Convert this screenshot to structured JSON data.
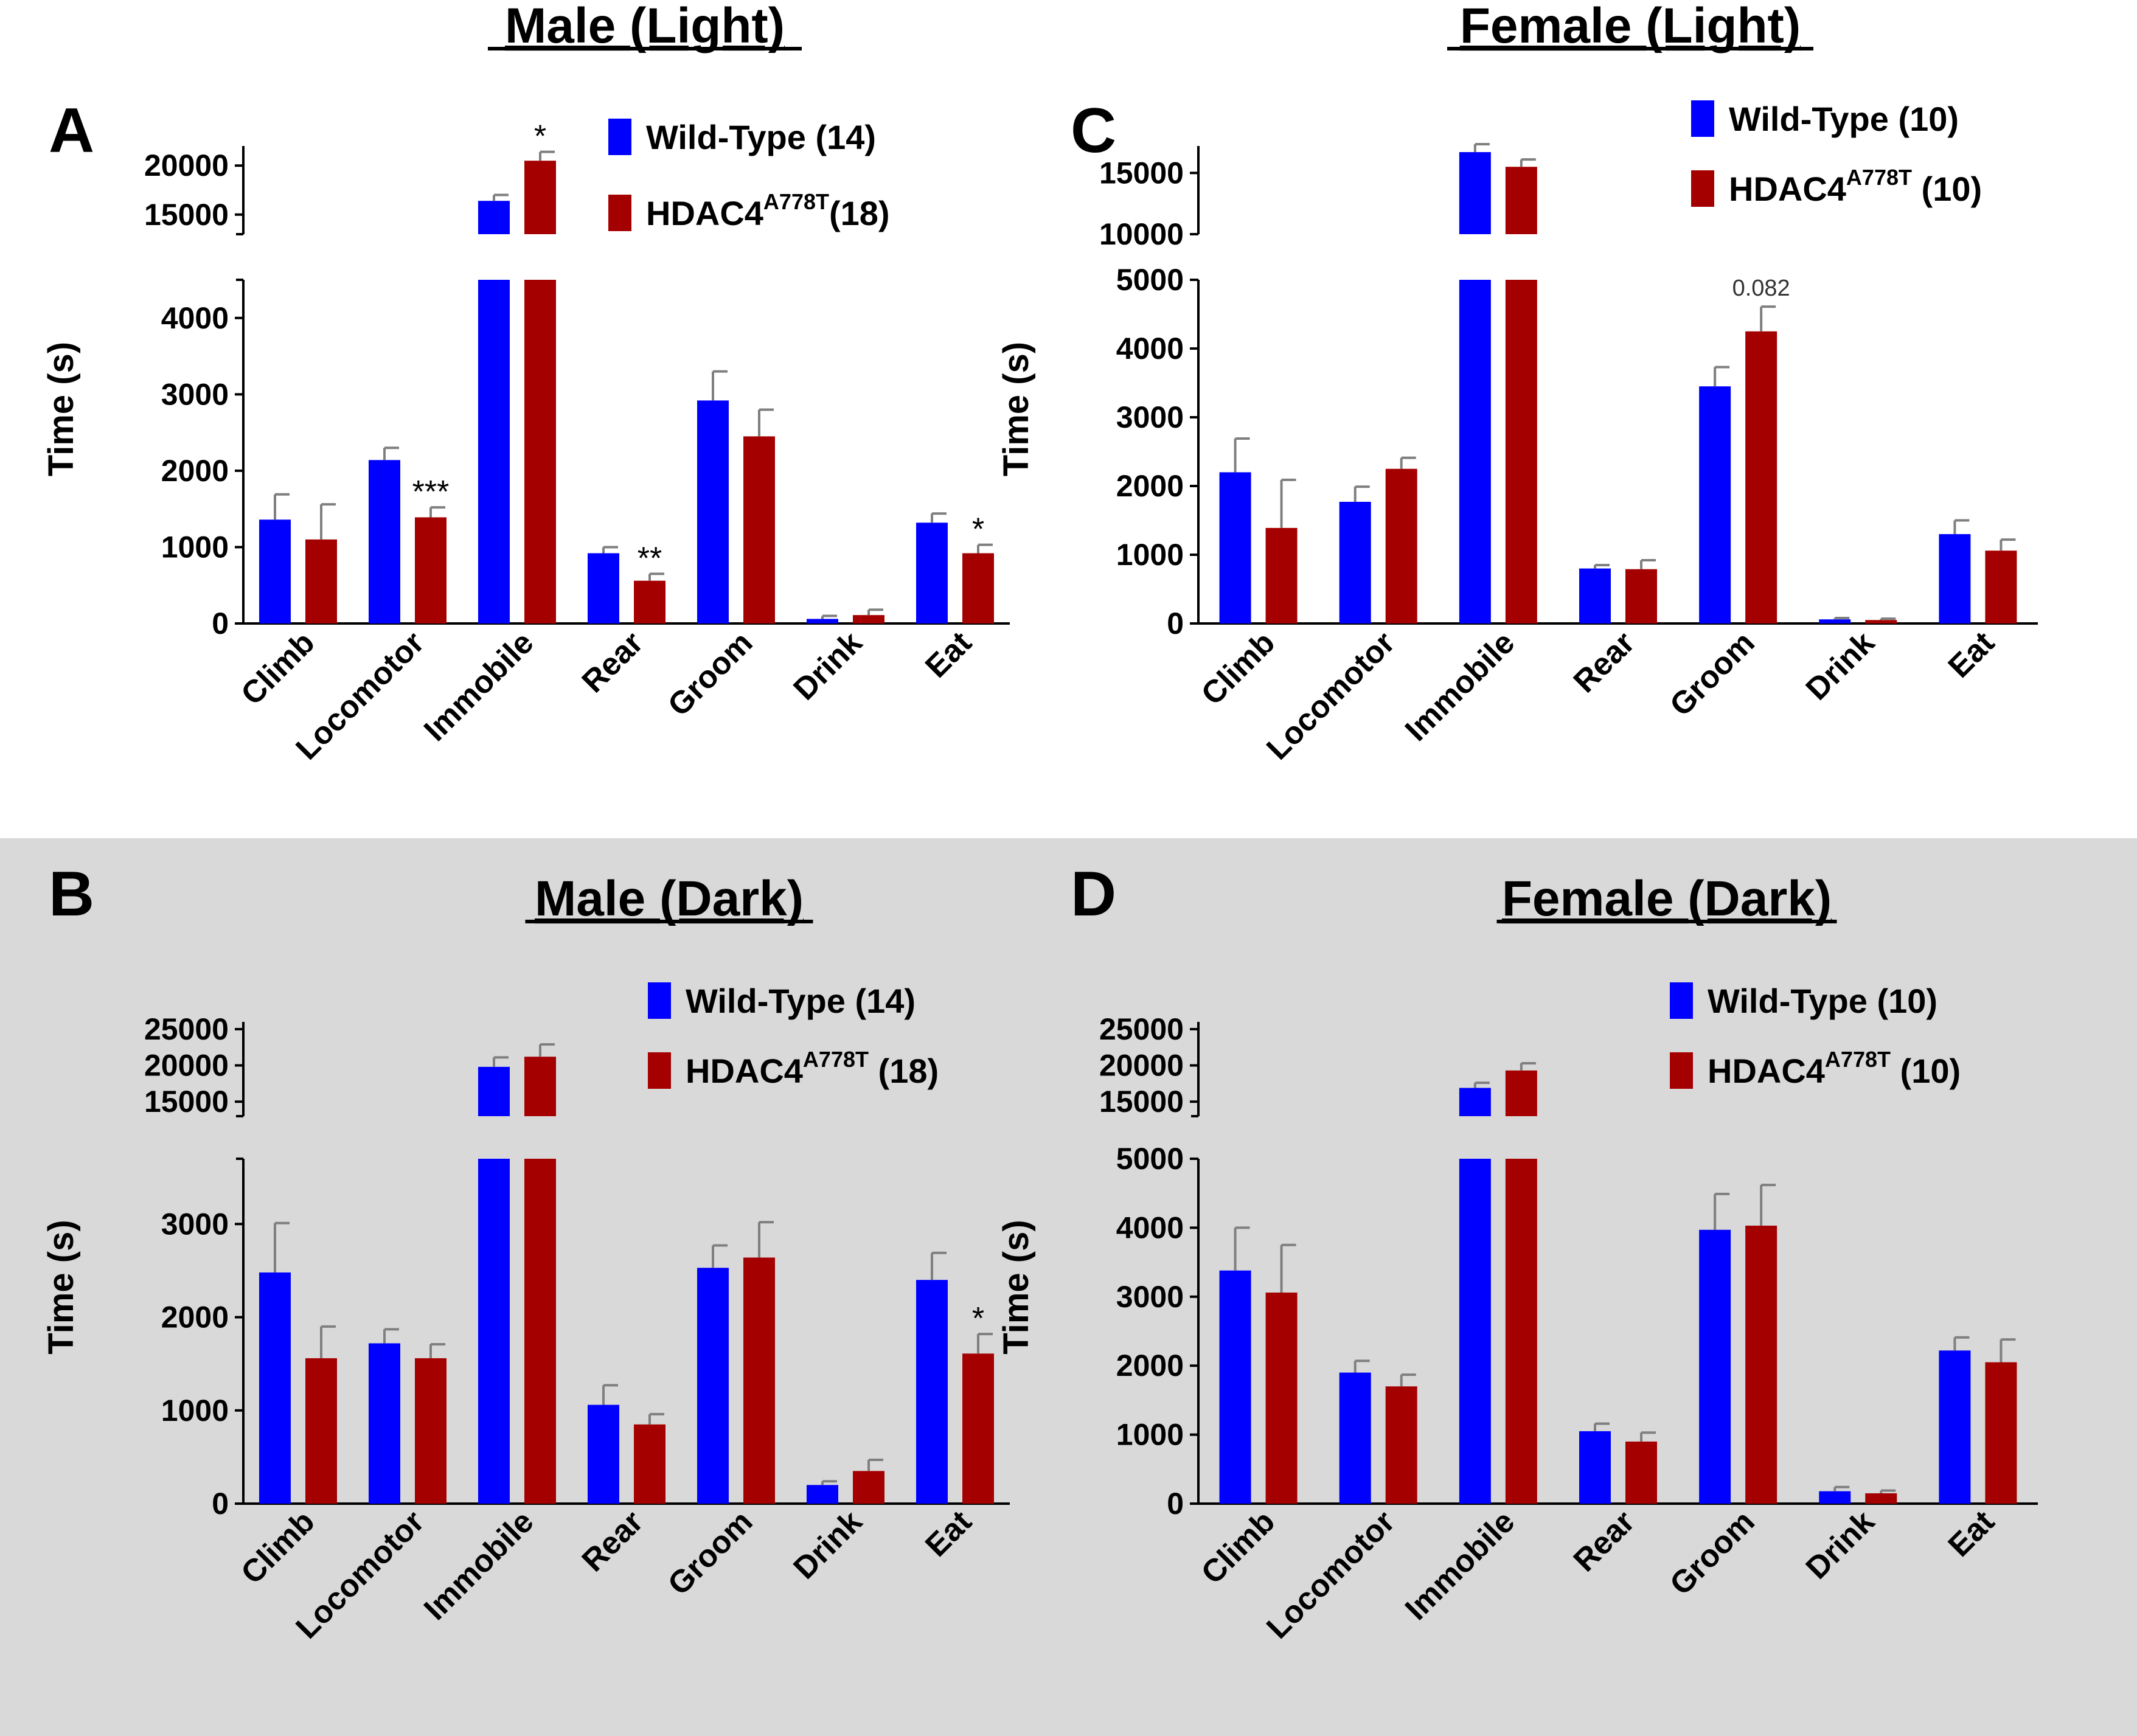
{
  "colors": {
    "wild_type": "#0000ff",
    "hdac4": "#a50000",
    "error_bar": "#7f7f7f",
    "dark_panel_bg": "#d9d9d9"
  },
  "chart_data": [
    {
      "id": "A",
      "type": "bar",
      "panel_letter": "A",
      "title": "Male (Light)",
      "ylabel": "Time (s)",
      "categories": [
        "Climb",
        "Locomotor",
        "Immobile",
        "Rear",
        "Groom",
        "Drink",
        "Eat"
      ],
      "legend": [
        {
          "name": "Wild-Type (14)",
          "name_base": "Wild-Type",
          "superscript": "",
          "n_text": " (14)"
        },
        {
          "name": "HDAC4A778T(18)",
          "name_base": "HDAC4",
          "superscript": "A778T",
          "n_text": "(18)"
        }
      ],
      "series": [
        {
          "name": "Wild-Type",
          "values": [
            1360,
            2140,
            16400,
            920,
            2920,
            60,
            1320
          ],
          "errors": [
            330,
            160,
            600,
            80,
            380,
            40,
            120
          ]
        },
        {
          "name": "HDAC4A778T",
          "values": [
            1100,
            1390,
            20500,
            560,
            2450,
            110,
            920
          ],
          "errors": [
            460,
            130,
            900,
            90,
            350,
            70,
            110
          ]
        }
      ],
      "ylim_lower": [
        0,
        4500
      ],
      "ylim_upper": [
        13000,
        22000
      ],
      "yticks_lower": [
        0,
        1000,
        2000,
        3000,
        4000
      ],
      "yticks_upper": [
        15000,
        20000
      ],
      "annotations": [
        {
          "text": "*",
          "category": "Immobile",
          "series": 1
        },
        {
          "text": "***",
          "category": "Locomotor",
          "series": 1
        },
        {
          "text": "**",
          "category": "Rear",
          "series": 1
        },
        {
          "text": "*",
          "category": "Eat",
          "series": 1
        }
      ]
    },
    {
      "id": "C",
      "type": "bar",
      "panel_letter": "C",
      "title": "Female (Light)",
      "ylabel": "Time (s)",
      "categories": [
        "Climb",
        "Locomotor",
        "Immobile",
        "Rear",
        "Groom",
        "Drink",
        "Eat"
      ],
      "legend": [
        {
          "name": "Wild-Type (10)",
          "name_base": "Wild-Type",
          "superscript": "",
          "n_text": " (10)"
        },
        {
          "name": "HDAC4A778T (10)",
          "name_base": "HDAC4",
          "superscript": "A778T",
          "n_text": " (10)"
        }
      ],
      "series": [
        {
          "name": "Wild-Type",
          "values": [
            2200,
            1770,
            16700,
            800,
            3450,
            60,
            1300
          ],
          "errors": [
            490,
            220,
            650,
            50,
            280,
            20,
            200
          ]
        },
        {
          "name": "HDAC4A778T",
          "values": [
            1390,
            2250,
            15500,
            790,
            4250,
            50,
            1060
          ],
          "errors": [
            700,
            160,
            600,
            130,
            360,
            20,
            160
          ]
        }
      ],
      "ylim_lower": [
        0,
        5000
      ],
      "ylim_upper": [
        10000,
        17200
      ],
      "yticks_lower": [
        0,
        1000,
        2000,
        3000,
        4000,
        5000
      ],
      "yticks_upper": [
        10000,
        15000
      ],
      "annotations": [
        {
          "text": "0.082",
          "category": "Groom",
          "series": 1
        }
      ]
    },
    {
      "id": "B",
      "type": "bar",
      "panel_letter": "B",
      "title": "Male (Dark)",
      "ylabel": "Time (s)",
      "categories": [
        "Climb",
        "Locomotor",
        "Immobile",
        "Rear",
        "Groom",
        "Drink",
        "Eat"
      ],
      "legend": [
        {
          "name": "Wild-Type (14)",
          "name_base": "Wild-Type",
          "superscript": "",
          "n_text": " (14)"
        },
        {
          "name": "HDAC4A778T (18)",
          "name_base": "HDAC4",
          "superscript": "A778T",
          "n_text": " (18)"
        }
      ],
      "series": [
        {
          "name": "Wild-Type",
          "values": [
            2480,
            1720,
            19800,
            1060,
            2530,
            200,
            2400
          ],
          "errors": [
            530,
            150,
            1300,
            210,
            240,
            40,
            290
          ]
        },
        {
          "name": "HDAC4A778T",
          "values": [
            1560,
            1560,
            21200,
            850,
            2640,
            350,
            1610
          ],
          "errors": [
            340,
            150,
            1700,
            110,
            380,
            120,
            210
          ]
        }
      ],
      "ylim_lower": [
        0,
        3700
      ],
      "ylim_upper": [
        13000,
        26000
      ],
      "yticks_lower": [
        0,
        1000,
        2000,
        3000
      ],
      "yticks_upper": [
        15000,
        20000,
        25000
      ],
      "annotations": [
        {
          "text": "*",
          "category": "Eat",
          "series": 1
        }
      ]
    },
    {
      "id": "D",
      "type": "bar",
      "panel_letter": "D",
      "title": "Female (Dark)",
      "ylabel": "Time (s)",
      "categories": [
        "Climb",
        "Locomotor",
        "Immobile",
        "Rear",
        "Groom",
        "Drink",
        "Eat"
      ],
      "legend": [
        {
          "name": "Wild-Type (10)",
          "name_base": "Wild-Type",
          "superscript": "",
          "n_text": " (10)"
        },
        {
          "name": "HDAC4A778T (10)",
          "name_base": "HDAC4",
          "superscript": "A778T",
          "n_text": " (10)"
        }
      ],
      "series": [
        {
          "name": "Wild-Type",
          "values": [
            3380,
            1900,
            16900,
            1050,
            3970,
            180,
            2220
          ],
          "errors": [
            620,
            170,
            700,
            110,
            520,
            60,
            190
          ]
        },
        {
          "name": "HDAC4A778T",
          "values": [
            3060,
            1700,
            19300,
            900,
            4030,
            150,
            2050
          ],
          "errors": [
            690,
            170,
            1000,
            130,
            590,
            40,
            330
          ]
        }
      ],
      "ylim_lower": [
        0,
        5000
      ],
      "ylim_upper": [
        13000,
        26000
      ],
      "yticks_lower": [
        0,
        1000,
        2000,
        3000,
        4000,
        5000
      ],
      "yticks_upper": [
        15000,
        20000,
        25000
      ],
      "annotations": []
    }
  ]
}
